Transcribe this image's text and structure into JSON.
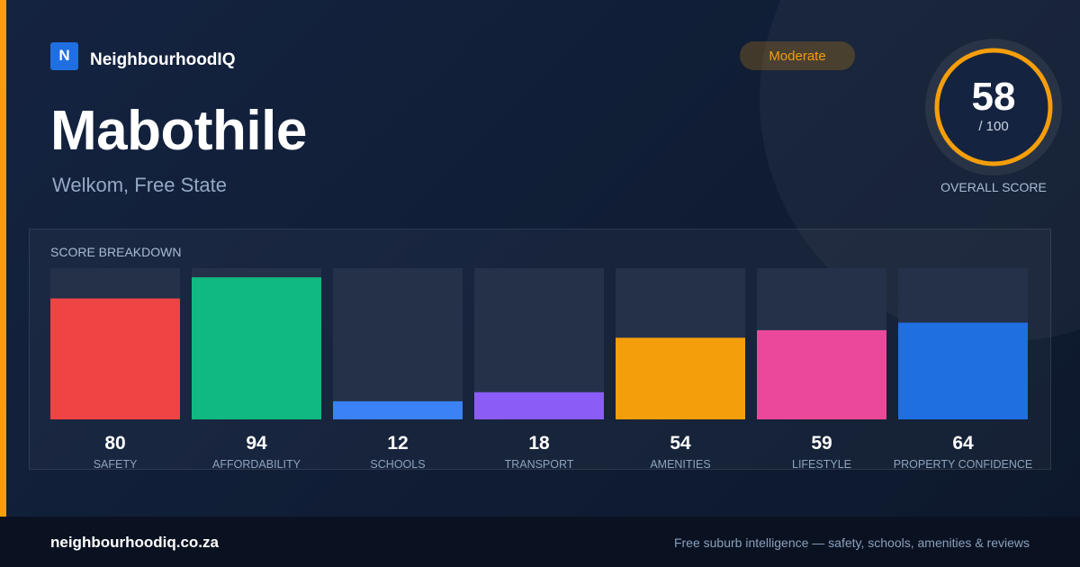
{
  "brand": {
    "logo_letter": "N",
    "name": "NeighbourhoodIQ"
  },
  "suburb": {
    "name": "Mabothile",
    "location": "Welkom, Free State"
  },
  "rating_badge": "Moderate",
  "overall": {
    "score": 58,
    "score_text": "58",
    "max_text": "/ 100",
    "label": "OVERALL SCORE"
  },
  "colors": {
    "accent": "#f59e0b",
    "brand": "#1f6fe0",
    "track": "#243149"
  },
  "chart_data": {
    "type": "bar",
    "title": "SCORE BREAKDOWN",
    "categories": [
      "SAFETY",
      "AFFORDABILITY",
      "SCHOOLS",
      "TRANSPORT",
      "AMENITIES",
      "LIFESTYLE",
      "PROPERTY CONFIDENCE"
    ],
    "values": [
      80,
      94,
      12,
      18,
      54,
      59,
      64
    ],
    "colors": [
      "#ef4444",
      "#10b981",
      "#3b82f6",
      "#8b5cf6",
      "#f59e0b",
      "#ec4899",
      "#1f6fe0"
    ],
    "ylim": [
      0,
      100
    ]
  },
  "footer": {
    "url": "neighbourhoodiq.co.za",
    "tagline": "Free suburb intelligence — safety, schools, amenities & reviews"
  }
}
